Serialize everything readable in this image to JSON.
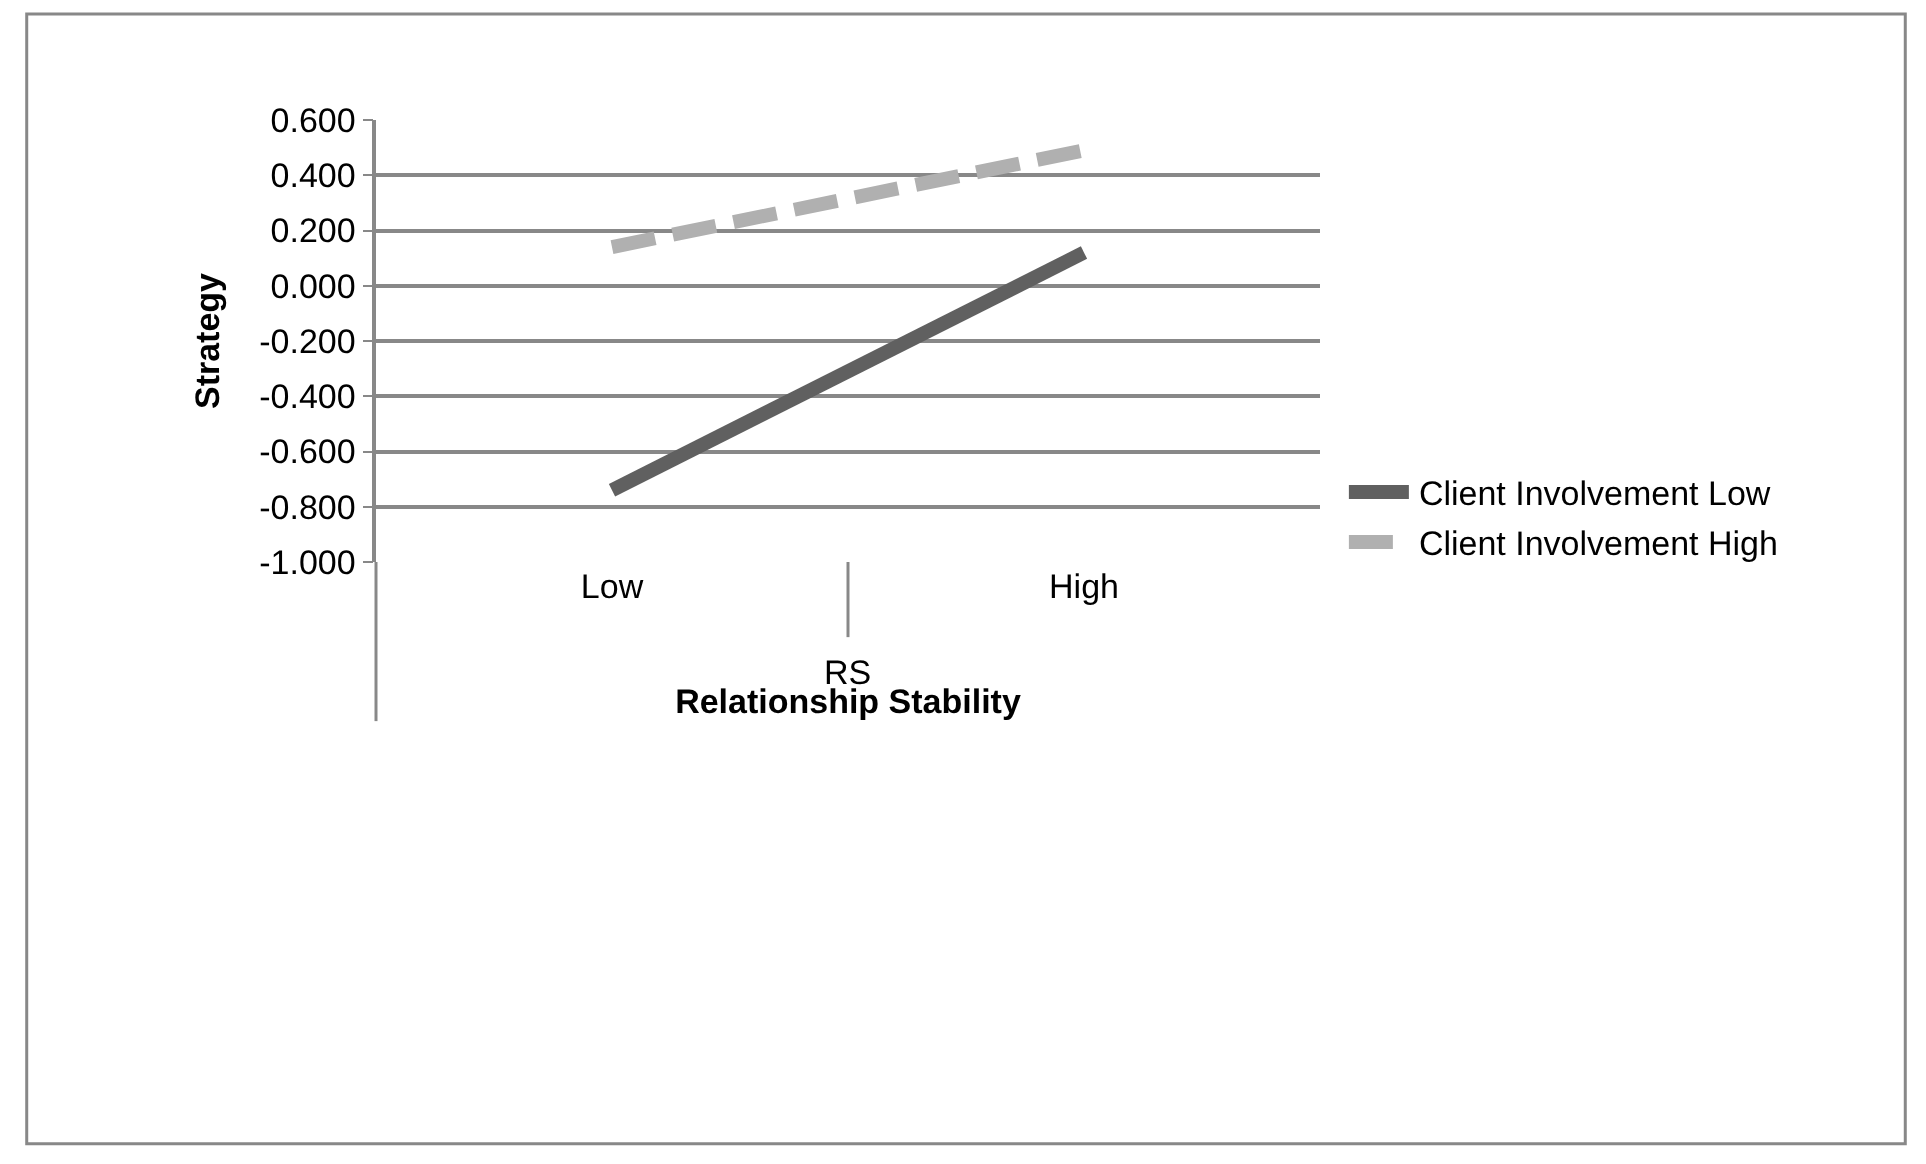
{
  "chart_data": {
    "type": "line",
    "xlabel": "Relationship Stability",
    "ylabel": "Strategy",
    "categories": [
      "Low",
      "High"
    ],
    "series": [
      {
        "name": "Client Involvement Low",
        "color": "#606060",
        "values": [
          -0.74,
          0.12
        ],
        "line_style": "solid"
      },
      {
        "name": "Client Involvement High",
        "color": "#b0b0b0",
        "values": [
          0.14,
          0.49
        ],
        "line_style": "dashed"
      }
    ],
    "ylim": [
      -1.0,
      0.6
    ],
    "yticks": [
      {
        "value": -1.0,
        "label": "-1.000"
      },
      {
        "value": -0.8,
        "label": "-0.800"
      },
      {
        "value": -0.6,
        "label": "-0.600"
      },
      {
        "value": -0.4,
        "label": "-0.400"
      },
      {
        "value": -0.2,
        "label": "-0.200"
      },
      {
        "value": 0.0,
        "label": "0.000"
      },
      {
        "value": 0.2,
        "label": "0.200"
      },
      {
        "value": 0.4,
        "label": "0.400"
      },
      {
        "value": 0.6,
        "label": "0.600"
      }
    ],
    "annotations": [
      "RS"
    ],
    "grid": "y",
    "legend": "right",
    "marker": "none"
  }
}
